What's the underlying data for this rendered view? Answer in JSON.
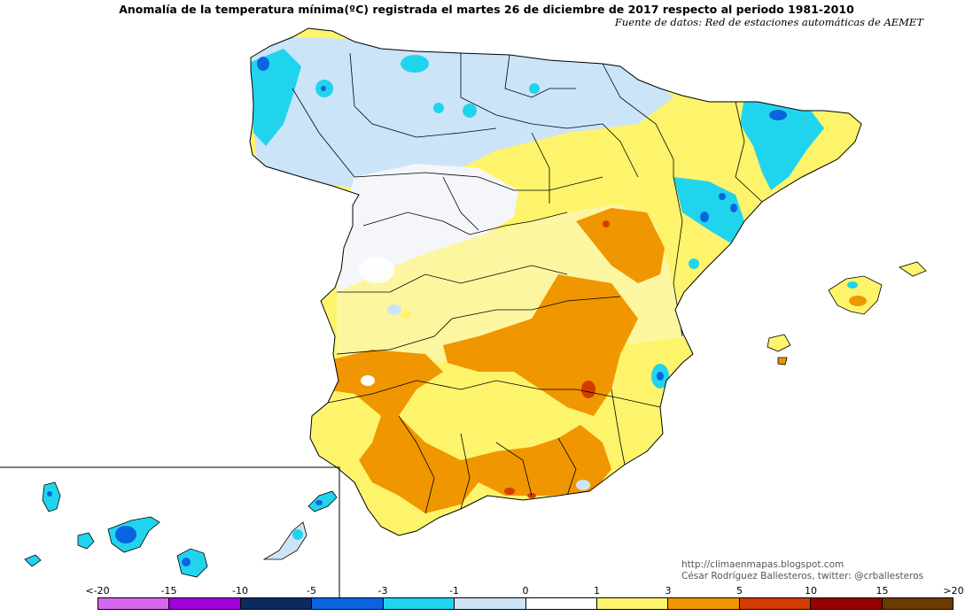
{
  "header": {
    "title": "Anomalía de la temperatura mínima(ºC) registrada el martes 26 de diciembre de 2017 respecto al periodo 1981-2010",
    "subtitle": "Fuente de datos: Red de estaciones automáticas de AEMET"
  },
  "credits": {
    "blog": "http://climaenmapas.blogspot.com",
    "author": "César Rodríguez Ballesteros, twitter: @crballesteros"
  },
  "legend": {
    "ticks": [
      "<-20",
      "-15",
      "-10",
      "-5",
      "-3",
      "-1",
      "0",
      "1",
      "3",
      "5",
      "10",
      "15",
      ">20"
    ],
    "colors": [
      "#d666ee",
      "#a100d8",
      "#0a2a60",
      "#0a64e0",
      "#21d4ee",
      "#cce4f8",
      "#ffffff",
      "#fdf46c",
      "#f09600",
      "#d23c00",
      "#960000",
      "#6a3c00"
    ]
  },
  "palette": {
    "cyan": "#21d4ee",
    "blue": "#0a64e0",
    "lightblue": "#cce4f8",
    "white": "#ffffff",
    "yellow": "#fdf46c",
    "paleyellow": "#fdf8a8",
    "orange": "#f09600",
    "red": "#d23c00",
    "border": "#000000"
  },
  "map": {
    "region": "Península Ibérica, Baleares y Canarias",
    "inset": "Islas Canarias"
  }
}
